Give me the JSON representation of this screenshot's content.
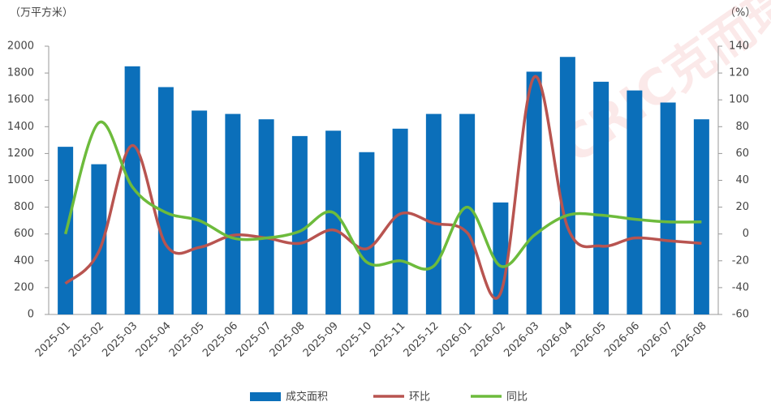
{
  "chart_data": {
    "type": "bar-line",
    "y_label": "（万平方米）",
    "y2_label": "（%）",
    "watermark": "CRIC克而瑞",
    "categories": [
      "2025-01",
      "2025-02",
      "2025-03",
      "2025-04",
      "2025-05",
      "2025-06",
      "2025-07",
      "2025-08",
      "2025-09",
      "2025-10",
      "2025-11",
      "2025-12",
      "2026-01",
      "2026-02",
      "2026-03",
      "2026-04",
      "2026-05",
      "2026-06",
      "2026-07",
      "2026-08"
    ],
    "series": [
      {
        "name": "成交面积",
        "type": "bar",
        "color": "#0b6fba",
        "axis": "y",
        "values": [
          1250,
          1120,
          1850,
          1695,
          1520,
          1495,
          1455,
          1330,
          1370,
          1210,
          1385,
          1495,
          1495,
          835,
          1810,
          1920,
          1735,
          1670,
          1580,
          1455
        ]
      },
      {
        "name": "环比",
        "type": "line",
        "color": "#b85450",
        "axis": "y2",
        "values": [
          -37,
          -13,
          66,
          -8,
          -10,
          -1,
          -3,
          -7,
          3,
          -11,
          15,
          8,
          1,
          -44,
          117,
          5,
          -9,
          -3,
          -5,
          -7
        ]
      },
      {
        "name": "同比",
        "type": "line",
        "color": "#6dbb3c",
        "axis": "y2",
        "values": [
          0,
          83,
          35,
          16,
          10,
          -3,
          -3,
          2,
          16,
          -21,
          -20,
          -24,
          20,
          -24,
          -1,
          14,
          14,
          11,
          9,
          9
        ]
      }
    ],
    "ylim": [
      0,
      2000
    ],
    "yticks": [
      0,
      200,
      400,
      600,
      800,
      1000,
      1200,
      1400,
      1600,
      1800,
      2000
    ],
    "y2lim": [
      -60,
      140
    ],
    "y2ticks": [
      -60,
      -40,
      -20,
      0,
      20,
      40,
      60,
      80,
      100,
      120,
      140
    ],
    "grid": false,
    "legend": "bottom"
  }
}
